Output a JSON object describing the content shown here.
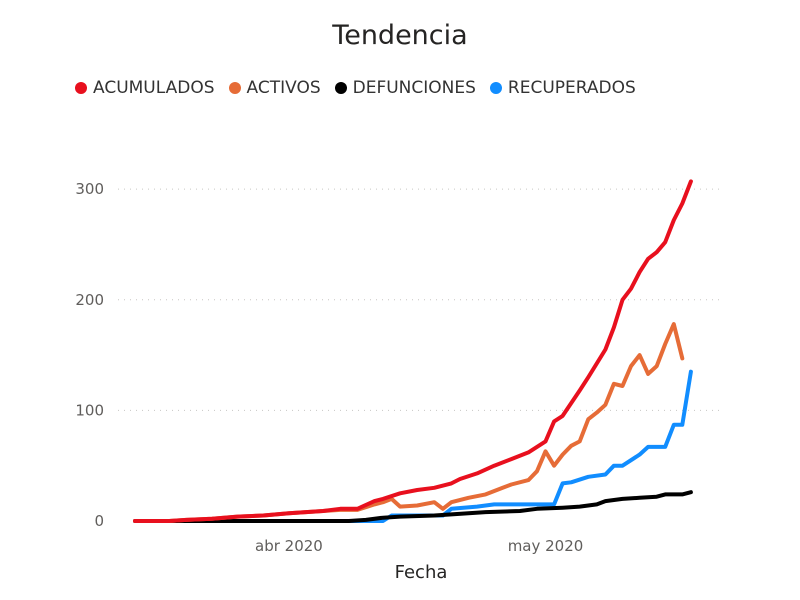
{
  "chart_data": {
    "type": "line",
    "title": "Tendencia",
    "xlabel": "Fecha",
    "ylabel": "",
    "x_start": "2020-03-14",
    "x_end": "2020-05-20",
    "ylim": [
      0,
      320
    ],
    "yticks": [
      0,
      100,
      200,
      300
    ],
    "xticks": [
      {
        "date": "2020-04-01",
        "label": "abr 2020"
      },
      {
        "date": "2020-05-01",
        "label": "may 2020"
      }
    ],
    "grid": true,
    "legend_position": "top-left",
    "series": [
      {
        "name": "ACUMULADOS",
        "color": "#e8101e",
        "points": [
          [
            "2020-03-14",
            0
          ],
          [
            "2020-03-18",
            0
          ],
          [
            "2020-03-20",
            1
          ],
          [
            "2020-03-23",
            2
          ],
          [
            "2020-03-26",
            4
          ],
          [
            "2020-03-29",
            5
          ],
          [
            "2020-04-01",
            7
          ],
          [
            "2020-04-03",
            8
          ],
          [
            "2020-04-05",
            9
          ],
          [
            "2020-04-07",
            11
          ],
          [
            "2020-04-09",
            11
          ],
          [
            "2020-04-11",
            18
          ],
          [
            "2020-04-12",
            20
          ],
          [
            "2020-04-14",
            25
          ],
          [
            "2020-04-16",
            28
          ],
          [
            "2020-04-18",
            30
          ],
          [
            "2020-04-20",
            34
          ],
          [
            "2020-04-21",
            38
          ],
          [
            "2020-04-23",
            43
          ],
          [
            "2020-04-25",
            50
          ],
          [
            "2020-04-27",
            56
          ],
          [
            "2020-04-29",
            62
          ],
          [
            "2020-05-01",
            72
          ],
          [
            "2020-05-02",
            90
          ],
          [
            "2020-05-03",
            95
          ],
          [
            "2020-05-05",
            118
          ],
          [
            "2020-05-06",
            130
          ],
          [
            "2020-05-08",
            155
          ],
          [
            "2020-05-09",
            175
          ],
          [
            "2020-05-10",
            200
          ],
          [
            "2020-05-11",
            210
          ],
          [
            "2020-05-12",
            225
          ],
          [
            "2020-05-13",
            237
          ],
          [
            "2020-05-14",
            243
          ],
          [
            "2020-05-15",
            252
          ],
          [
            "2020-05-16",
            272
          ],
          [
            "2020-05-17",
            287
          ],
          [
            "2020-05-18",
            307
          ]
        ]
      },
      {
        "name": "ACTIVOS",
        "color": "#e66c37",
        "points": [
          [
            "2020-03-14",
            0
          ],
          [
            "2020-03-18",
            0
          ],
          [
            "2020-03-20",
            1
          ],
          [
            "2020-03-23",
            2
          ],
          [
            "2020-03-26",
            4
          ],
          [
            "2020-03-29",
            5
          ],
          [
            "2020-04-01",
            7
          ],
          [
            "2020-04-03",
            8
          ],
          [
            "2020-04-05",
            9
          ],
          [
            "2020-04-07",
            10
          ],
          [
            "2020-04-09",
            10
          ],
          [
            "2020-04-11",
            15
          ],
          [
            "2020-04-12",
            17
          ],
          [
            "2020-04-13",
            20
          ],
          [
            "2020-04-14",
            13
          ],
          [
            "2020-04-16",
            14
          ],
          [
            "2020-04-18",
            17
          ],
          [
            "2020-04-19",
            11
          ],
          [
            "2020-04-20",
            17
          ],
          [
            "2020-04-22",
            21
          ],
          [
            "2020-04-24",
            24
          ],
          [
            "2020-04-26",
            30
          ],
          [
            "2020-04-27",
            33
          ],
          [
            "2020-04-29",
            37
          ],
          [
            "2020-04-30",
            45
          ],
          [
            "2020-05-01",
            63
          ],
          [
            "2020-05-02",
            50
          ],
          [
            "2020-05-03",
            60
          ],
          [
            "2020-05-04",
            68
          ],
          [
            "2020-05-05",
            72
          ],
          [
            "2020-05-06",
            92
          ],
          [
            "2020-05-07",
            98
          ],
          [
            "2020-05-08",
            105
          ],
          [
            "2020-05-09",
            124
          ],
          [
            "2020-05-10",
            122
          ],
          [
            "2020-05-11",
            140
          ],
          [
            "2020-05-12",
            150
          ],
          [
            "2020-05-13",
            133
          ],
          [
            "2020-05-14",
            140
          ],
          [
            "2020-05-15",
            160
          ],
          [
            "2020-05-16",
            178
          ],
          [
            "2020-05-17",
            147
          ]
        ]
      },
      {
        "name": "DEFUNCIONES",
        "color": "#000000",
        "points": [
          [
            "2020-03-14",
            0
          ],
          [
            "2020-04-08",
            0
          ],
          [
            "2020-04-10",
            1
          ],
          [
            "2020-04-12",
            3
          ],
          [
            "2020-04-14",
            4
          ],
          [
            "2020-04-18",
            5
          ],
          [
            "2020-04-20",
            6
          ],
          [
            "2020-04-22",
            7
          ],
          [
            "2020-04-24",
            8
          ],
          [
            "2020-04-28",
            9
          ],
          [
            "2020-04-30",
            11
          ],
          [
            "2020-05-03",
            12
          ],
          [
            "2020-05-05",
            13
          ],
          [
            "2020-05-07",
            15
          ],
          [
            "2020-05-08",
            18
          ],
          [
            "2020-05-10",
            20
          ],
          [
            "2020-05-12",
            21
          ],
          [
            "2020-05-14",
            22
          ],
          [
            "2020-05-15",
            24
          ],
          [
            "2020-05-17",
            24
          ],
          [
            "2020-05-18",
            26
          ]
        ]
      },
      {
        "name": "RECUPERADOS",
        "color": "#118dff",
        "points": [
          [
            "2020-03-14",
            0
          ],
          [
            "2020-04-12",
            0
          ],
          [
            "2020-04-13",
            5
          ],
          [
            "2020-04-19",
            5
          ],
          [
            "2020-04-20",
            11
          ],
          [
            "2020-04-23",
            13
          ],
          [
            "2020-04-25",
            15
          ],
          [
            "2020-05-02",
            15
          ],
          [
            "2020-05-03",
            34
          ],
          [
            "2020-05-04",
            35
          ],
          [
            "2020-05-06",
            40
          ],
          [
            "2020-05-08",
            42
          ],
          [
            "2020-05-09",
            50
          ],
          [
            "2020-05-10",
            50
          ],
          [
            "2020-05-12",
            60
          ],
          [
            "2020-05-13",
            67
          ],
          [
            "2020-05-15",
            67
          ],
          [
            "2020-05-16",
            87
          ],
          [
            "2020-05-17",
            87
          ],
          [
            "2020-05-18",
            135
          ]
        ]
      }
    ]
  }
}
